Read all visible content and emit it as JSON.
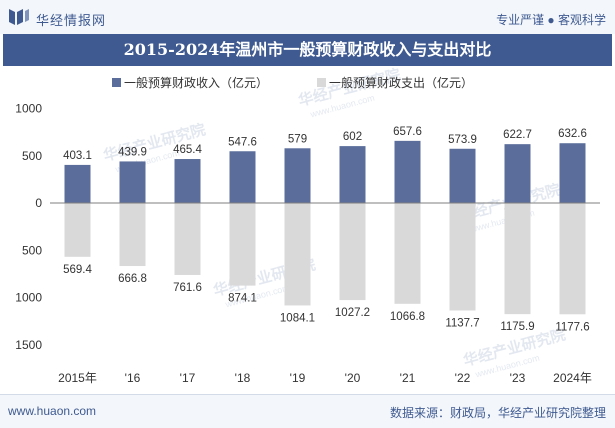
{
  "header": {
    "brand": "华经情报网",
    "slogan": "专业严谨 ● 客观科学"
  },
  "title": "2015-2024年温州市一般预算财政收入与支出对比",
  "chart_data": {
    "type": "bar",
    "categories": [
      "2015年",
      "'16",
      "'17",
      "'18",
      "'19",
      "'20",
      "'21",
      "'22",
      "'23",
      "2024年"
    ],
    "series": [
      {
        "name": "一般预算财政收入（亿元）",
        "values": [
          403.1,
          439.9,
          465.4,
          547.6,
          579,
          602,
          657.6,
          573.9,
          622.7,
          632.6
        ],
        "color": "#5b6e9b",
        "direction": "up"
      },
      {
        "name": "一般预算财政支出（亿元）",
        "values": [
          569.4,
          666.8,
          761.6,
          874.1,
          1084.1,
          1027.2,
          1066.8,
          1137.7,
          1175.9,
          1177.6
        ],
        "color": "#d9d9d9",
        "direction": "down"
      }
    ],
    "yticks": [
      {
        "value": 1000,
        "label": "1000"
      },
      {
        "value": 500,
        "label": "500"
      },
      {
        "value": 0,
        "label": "0"
      },
      {
        "value": -500,
        "label": "500"
      },
      {
        "value": -1000,
        "label": "1000"
      },
      {
        "value": -1500,
        "label": "1500"
      }
    ],
    "ylim": [
      -1500,
      1000
    ],
    "legend_position": "top-left",
    "grid": false
  },
  "watermark": {
    "text": "华经产业研究院",
    "url": "www.huaon.com"
  },
  "footer": {
    "site": "www.huaon.com",
    "source": "数据来源：财政局，华经产业研究院整理"
  }
}
